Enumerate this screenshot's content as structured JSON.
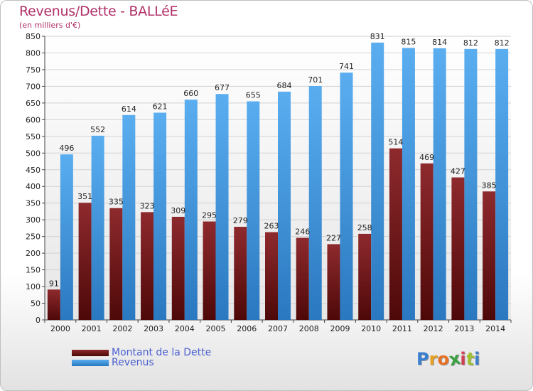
{
  "chart_data": {
    "type": "bar",
    "title": "Revenus/Dette - BALLéE",
    "subtitle": "(en milliers d'€)",
    "categories": [
      "2000",
      "2001",
      "2002",
      "2003",
      "2004",
      "2005",
      "2006",
      "2007",
      "2008",
      "2009",
      "2010",
      "2011",
      "2012",
      "2013",
      "2014"
    ],
    "series": [
      {
        "name": "Montant de la Dette",
        "color": "#7a1f22",
        "values": [
          91,
          351,
          335,
          323,
          309,
          295,
          279,
          263,
          246,
          227,
          258,
          514,
          469,
          427,
          385
        ]
      },
      {
        "name": "Revenus",
        "color": "#4fa2e2",
        "values": [
          496,
          552,
          614,
          621,
          660,
          677,
          655,
          684,
          701,
          741,
          831,
          815,
          814,
          812,
          812
        ]
      }
    ],
    "ylim": [
      0,
      850
    ],
    "yticks": [
      0,
      50,
      100,
      150,
      200,
      250,
      300,
      350,
      400,
      450,
      500,
      550,
      600,
      650,
      700,
      750,
      800,
      850
    ],
    "grid": true,
    "legend_position": "bottom-left"
  },
  "logo": {
    "letters": [
      "P",
      "r",
      "o",
      "x",
      "i",
      "t",
      "i"
    ],
    "colors": [
      "#3a7fd0",
      "#e8a020",
      "#e87020",
      "#3aa040",
      "#d04050",
      "#a0c030",
      "#3a7fd0"
    ]
  }
}
